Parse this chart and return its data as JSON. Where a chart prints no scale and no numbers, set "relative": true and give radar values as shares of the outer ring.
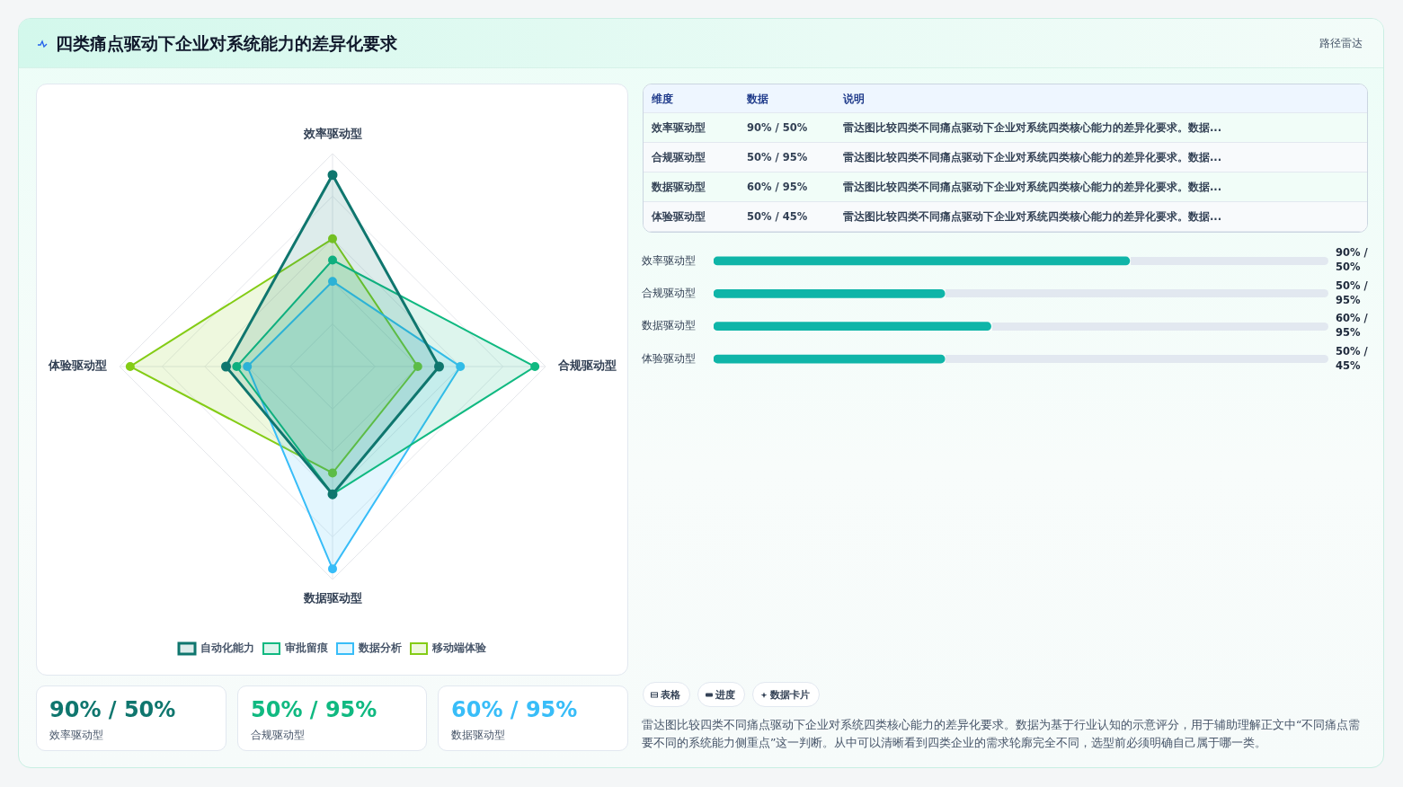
{
  "chart_data": [
    {
      "type": "radar",
      "title": "四类痛点驱动下企业对系统能力的差异化要求",
      "annotations": [
        "路径雷达"
      ],
      "categories": [
        "效率驱动型",
        "合规驱动型",
        "数据驱动型",
        "体验驱动型"
      ],
      "relative": true,
      "legend": "bottom",
      "marker": "circle",
      "grid": true,
      "series": [
        {
          "name": "自动化能力",
          "color": "#0f766e",
          "values": [
            0.9,
            0.5,
            0.6,
            0.5
          ]
        },
        {
          "name": "审批留痕",
          "color": "#10b981",
          "values": [
            0.5,
            0.95,
            0.6,
            0.45
          ]
        },
        {
          "name": "数据分析",
          "color": "#38bdf8",
          "values": [
            0.4,
            0.6,
            0.95,
            0.4
          ]
        },
        {
          "name": "移动端体验",
          "color": "#84cc16",
          "values": [
            0.6,
            0.4,
            0.5,
            0.95
          ]
        }
      ]
    },
    {
      "type": "other",
      "annotations": [
        "维度",
        "数据",
        "说明",
        "效率驱动型",
        "90% / 50%",
        "雷达图比较四类不同痛点驱动下企业对系统四类核心能力的差异化要求。数据...",
        "合规驱动型",
        "50% / 95%",
        "雷达图比较四类不同痛点驱动下企业对系统四类核心能力的差异化要求。数据...",
        "数据驱动型",
        "60% / 95%",
        "雷达图比较四类不同痛点驱动下企业对系统四类核心能力的差异化要求。数据...",
        "体验驱动型",
        "50% / 45%",
        "雷达图比较四类不同痛点驱动下企业对系统四类核心能力的差异化要求。数据..."
      ]
    },
    {
      "type": "bar",
      "orientation": "horizontal",
      "xlim": [
        0,
        133
      ],
      "color": "#0fb5a8",
      "categories": [
        "效率驱动型",
        "合规驱动型",
        "数据驱动型",
        "体验驱动型"
      ],
      "values": [
        90,
        50,
        60,
        50
      ],
      "value_labels": [
        "90% / 50%",
        "50% / 95%",
        "60% / 95%",
        "50% / 45%"
      ]
    },
    {
      "type": "other",
      "annotations": [
        "90% / 50%",
        "效率驱动型",
        "50% / 95%",
        "合规驱动型",
        "60% / 95%",
        "数据驱动型",
        "表格",
        "进度",
        "数据卡片",
        "雷达图比较四类不同痛点驱动下企业对系统四类核心能力的差异化要求。数据为基于行业认知的示意评分，用于辅助理解正文中“不同痛点需要不同的系统能力侧重点”这一判断。从中可以清晰看到四类企业的需求轮廓完全不同，选型前必须明确自己属于哪一类。"
      ]
    }
  ]
}
